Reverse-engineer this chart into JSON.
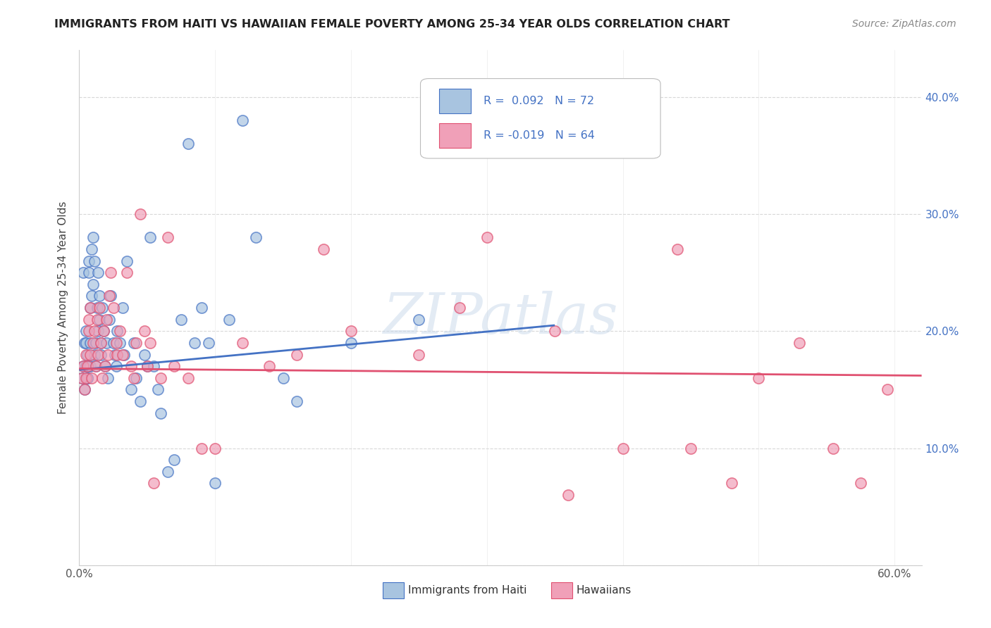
{
  "title": "IMMIGRANTS FROM HAITI VS HAWAIIAN FEMALE POVERTY AMONG 25-34 YEAR OLDS CORRELATION CHART",
  "source": "Source: ZipAtlas.com",
  "ylabel": "Female Poverty Among 25-34 Year Olds",
  "xlim": [
    0.0,
    0.62
  ],
  "ylim": [
    0.0,
    0.44
  ],
  "background_color": "#ffffff",
  "grid_color": "#d8d8d8",
  "watermark_text": "ZIPatlas",
  "legend_r1": "R =  0.092   N = 72",
  "legend_r2": "R = -0.019   N = 64",
  "legend_label1": "Immigrants from Haiti",
  "legend_label2": "Hawaiians",
  "color_blue": "#a8c4e0",
  "color_pink": "#f0a0b8",
  "trendline_blue": "#4472c4",
  "trendline_pink": "#e05070",
  "haiti_x": [
    0.002,
    0.003,
    0.003,
    0.004,
    0.004,
    0.005,
    0.005,
    0.005,
    0.006,
    0.006,
    0.006,
    0.007,
    0.007,
    0.007,
    0.008,
    0.008,
    0.008,
    0.009,
    0.009,
    0.01,
    0.01,
    0.011,
    0.011,
    0.012,
    0.012,
    0.013,
    0.014,
    0.014,
    0.015,
    0.015,
    0.016,
    0.016,
    0.017,
    0.018,
    0.019,
    0.02,
    0.021,
    0.022,
    0.023,
    0.025,
    0.026,
    0.027,
    0.028,
    0.03,
    0.032,
    0.033,
    0.035,
    0.038,
    0.04,
    0.042,
    0.045,
    0.048,
    0.05,
    0.052,
    0.055,
    0.058,
    0.06,
    0.065,
    0.07,
    0.075,
    0.08,
    0.085,
    0.09,
    0.095,
    0.1,
    0.11,
    0.12,
    0.13,
    0.15,
    0.16,
    0.2,
    0.25
  ],
  "haiti_y": [
    0.16,
    0.17,
    0.25,
    0.15,
    0.19,
    0.19,
    0.2,
    0.17,
    0.16,
    0.18,
    0.16,
    0.25,
    0.26,
    0.17,
    0.19,
    0.22,
    0.17,
    0.23,
    0.27,
    0.28,
    0.24,
    0.18,
    0.26,
    0.17,
    0.19,
    0.22,
    0.2,
    0.25,
    0.21,
    0.23,
    0.19,
    0.18,
    0.22,
    0.2,
    0.17,
    0.19,
    0.16,
    0.21,
    0.23,
    0.19,
    0.18,
    0.17,
    0.2,
    0.19,
    0.22,
    0.18,
    0.26,
    0.15,
    0.19,
    0.16,
    0.14,
    0.18,
    0.17,
    0.28,
    0.17,
    0.15,
    0.13,
    0.08,
    0.09,
    0.21,
    0.36,
    0.19,
    0.22,
    0.19,
    0.07,
    0.21,
    0.38,
    0.28,
    0.16,
    0.14,
    0.19,
    0.21
  ],
  "hawaiian_x": [
    0.002,
    0.003,
    0.004,
    0.005,
    0.005,
    0.006,
    0.007,
    0.007,
    0.008,
    0.008,
    0.009,
    0.01,
    0.011,
    0.012,
    0.013,
    0.014,
    0.015,
    0.016,
    0.017,
    0.018,
    0.019,
    0.02,
    0.021,
    0.022,
    0.023,
    0.025,
    0.027,
    0.028,
    0.03,
    0.032,
    0.035,
    0.038,
    0.04,
    0.042,
    0.045,
    0.048,
    0.05,
    0.052,
    0.055,
    0.06,
    0.065,
    0.07,
    0.08,
    0.09,
    0.1,
    0.12,
    0.14,
    0.16,
    0.18,
    0.2,
    0.25,
    0.28,
    0.3,
    0.35,
    0.36,
    0.4,
    0.44,
    0.45,
    0.48,
    0.5,
    0.53,
    0.555,
    0.575,
    0.595
  ],
  "hawaiian_y": [
    0.16,
    0.17,
    0.15,
    0.18,
    0.16,
    0.17,
    0.2,
    0.21,
    0.18,
    0.22,
    0.16,
    0.19,
    0.2,
    0.17,
    0.21,
    0.18,
    0.22,
    0.19,
    0.16,
    0.2,
    0.17,
    0.21,
    0.18,
    0.23,
    0.25,
    0.22,
    0.19,
    0.18,
    0.2,
    0.18,
    0.25,
    0.17,
    0.16,
    0.19,
    0.3,
    0.2,
    0.17,
    0.19,
    0.07,
    0.16,
    0.28,
    0.17,
    0.16,
    0.1,
    0.1,
    0.19,
    0.17,
    0.18,
    0.27,
    0.2,
    0.18,
    0.22,
    0.28,
    0.2,
    0.06,
    0.1,
    0.27,
    0.1,
    0.07,
    0.16,
    0.19,
    0.1,
    0.07,
    0.15
  ],
  "haiti_trend_x": [
    0.0,
    0.35
  ],
  "haiti_trend_y": [
    0.167,
    0.205
  ],
  "hawaiian_trend_x": [
    0.0,
    0.62
  ],
  "hawaiian_trend_y": [
    0.168,
    0.162
  ]
}
